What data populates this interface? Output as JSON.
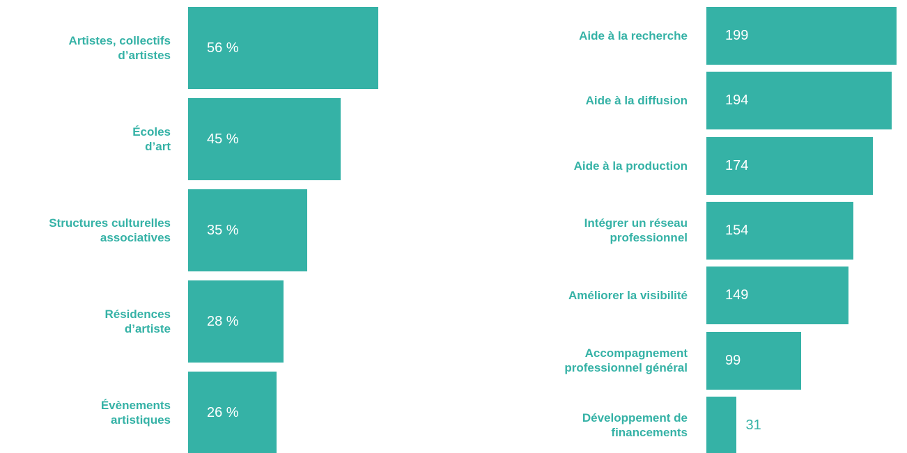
{
  "chart_data": [
    {
      "type": "bar",
      "orientation": "horizontal",
      "color": "#35b2a6",
      "categories": [
        "Artistes, collectifs\nd’artistes",
        "Écoles\nd’art",
        "Structures culturelles\nassociatives",
        "Résidences\nd’artiste",
        "Évènements\nartistiques"
      ],
      "values": [
        56,
        45,
        35,
        28,
        26
      ],
      "value_labels": [
        "56 %",
        "45 %",
        "35 %",
        "28 %",
        "26 %"
      ]
    },
    {
      "type": "bar",
      "orientation": "horizontal",
      "color": "#35b2a6",
      "categories": [
        "Aide à la recherche",
        "Aide à la diffusion",
        "Aide à la production",
        "Intégrer un réseau\nprofessionnel",
        "Améliorer la visibilité",
        "Accompagnement\nprofessionnel général",
        "Développement de\nfinancements"
      ],
      "values": [
        199,
        194,
        174,
        154,
        149,
        99,
        31
      ]
    }
  ]
}
